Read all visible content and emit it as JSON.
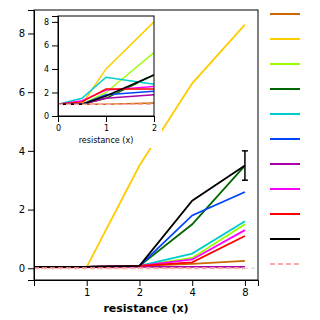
{
  "chart_data": [
    {
      "type": "line",
      "xlabel": "resistance (x)",
      "log": "x",
      "x": [
        0.5,
        1,
        2,
        4,
        8
      ],
      "xlim": [
        0.5,
        9.5
      ],
      "xticks": [
        1,
        2,
        4,
        8
      ],
      "ylim": [
        -0.4,
        8.8
      ],
      "yticks": [
        0,
        2,
        4,
        6,
        8
      ],
      "grid": false,
      "legend": "right",
      "baseline": 0,
      "series": [
        {
          "color": "#cc6600",
          "line_style": "solid",
          "values": [
            0.05,
            0.05,
            0.08,
            0.15,
            0.25
          ]
        },
        {
          "color": "#ffcc00",
          "line_style": "solid",
          "values": [
            0.05,
            0.05,
            3.5,
            6.3,
            8.3
          ]
        },
        {
          "color": "#99ff00",
          "line_style": "solid",
          "values": [
            0.05,
            0.05,
            0.08,
            0.35,
            1.5
          ]
        },
        {
          "color": "#006600",
          "line_style": "solid",
          "values": [
            0.05,
            0.05,
            0.08,
            1.5,
            3.5
          ]
        },
        {
          "color": "#00cccc",
          "line_style": "solid",
          "values": [
            0.05,
            0.05,
            0.08,
            0.5,
            1.6
          ]
        },
        {
          "color": "#0044ff",
          "line_style": "solid",
          "values": [
            0.05,
            0.05,
            0.08,
            1.8,
            2.6
          ]
        },
        {
          "color": "#aa00aa",
          "line_style": "solid",
          "values": [
            0.05,
            0.05,
            0.05,
            0.05,
            0.05
          ]
        },
        {
          "color": "#ff00ff",
          "line_style": "solid",
          "values": [
            0.05,
            0.05,
            0.08,
            0.3,
            1.3
          ]
        },
        {
          "color": "#ff0000",
          "line_style": "solid",
          "values": [
            0.05,
            0.05,
            0.08,
            0.2,
            1.1
          ]
        },
        {
          "color": "#000000",
          "line_style": "solid",
          "values": [
            0.05,
            0.05,
            0.08,
            2.3,
            3.5
          ],
          "errors": [
            null,
            null,
            null,
            null,
            0.5
          ]
        },
        {
          "color": "#ffaaaa",
          "line_style": "dashed",
          "values": [
            0.0,
            0.0,
            0.0,
            0.0,
            0.0
          ]
        }
      ]
    },
    {
      "type": "line",
      "xlabel": "resistance (x)",
      "x": [
        0,
        0.5,
        1,
        2
      ],
      "xlim": [
        0,
        2
      ],
      "xticks": [
        0,
        1,
        2
      ],
      "ylim": [
        0,
        8.5
      ],
      "yticks": [
        0,
        2,
        4,
        6,
        8
      ],
      "grid": false,
      "series": [
        {
          "color": "#cc6600",
          "line_style": "solid",
          "values": [
            1.0,
            1.0,
            1.0,
            1.1
          ]
        },
        {
          "color": "#ffcc00",
          "line_style": "solid",
          "values": [
            1.0,
            1.0,
            4.0,
            8.0
          ]
        },
        {
          "color": "#99ff00",
          "line_style": "solid",
          "values": [
            1.0,
            1.0,
            2.0,
            5.4
          ]
        },
        {
          "color": "#006600",
          "line_style": "solid",
          "values": [
            1.0,
            1.0,
            1.5,
            3.5
          ]
        },
        {
          "color": "#00cccc",
          "line_style": "solid",
          "values": [
            1.0,
            1.5,
            3.3,
            2.7
          ]
        },
        {
          "color": "#0044ff",
          "line_style": "solid",
          "values": [
            1.0,
            1.0,
            1.8,
            2.1
          ]
        },
        {
          "color": "#aa00aa",
          "line_style": "solid",
          "values": [
            1.0,
            1.0,
            1.5,
            1.8
          ]
        },
        {
          "color": "#ff00ff",
          "line_style": "solid",
          "values": [
            1.0,
            1.3,
            2.2,
            2.5
          ]
        },
        {
          "color": "#ff0000",
          "line_style": "solid",
          "values": [
            1.0,
            1.2,
            2.3,
            2.3
          ]
        },
        {
          "color": "#000000",
          "line_style": "solid",
          "values": [
            1.0,
            1.0,
            1.7,
            3.5
          ]
        },
        {
          "color": "#ffaaaa",
          "line_style": "dashed",
          "values": [
            1.0,
            1.0,
            1.0,
            1.0
          ]
        }
      ]
    }
  ]
}
